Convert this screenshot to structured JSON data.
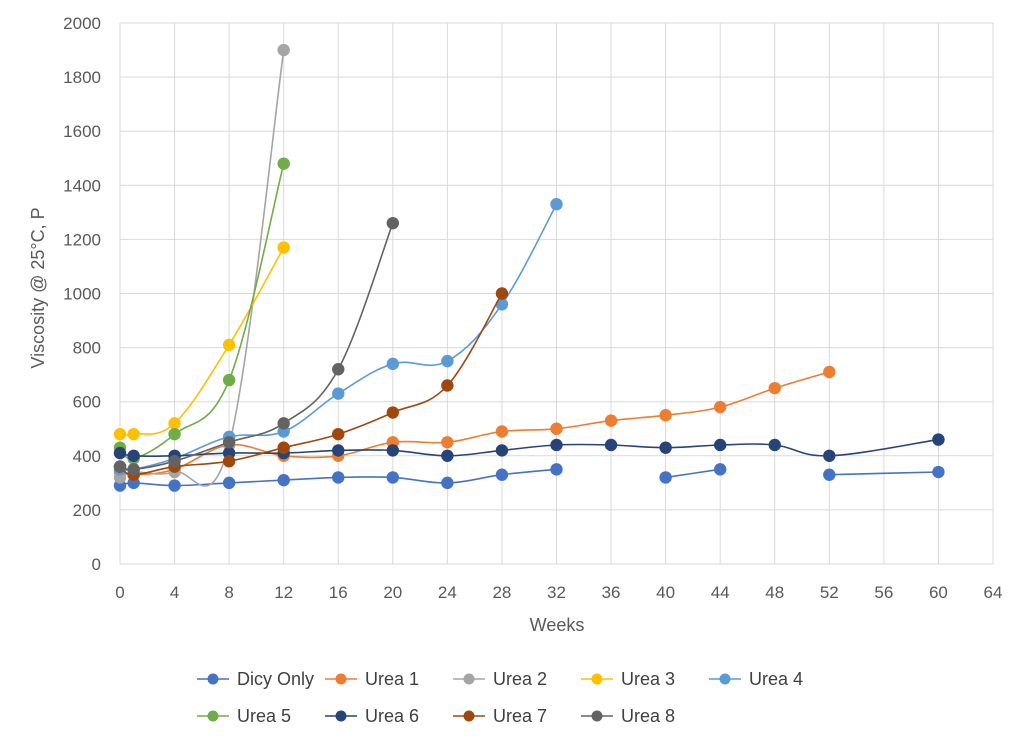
{
  "chart_data": {
    "type": "line",
    "title": "",
    "xlabel": "Weeks",
    "ylabel": "Viscosity @ 25°C,  P",
    "xlim": [
      0,
      64
    ],
    "ylim": [
      0,
      2000
    ],
    "xticks": [
      "0",
      "4",
      "8",
      "12",
      "16",
      "20",
      "24",
      "28",
      "32",
      "36",
      "40",
      "44",
      "48",
      "52",
      "56",
      "60",
      "64"
    ],
    "yticks": [
      "0",
      "200",
      "400",
      "600",
      "800",
      "1000",
      "1200",
      "1400",
      "1600",
      "1800",
      "2000"
    ],
    "grid": true,
    "legend_position": "bottom",
    "series": [
      {
        "name": "Dicy Only",
        "color": "#4472C4",
        "points": [
          [
            0,
            290
          ],
          [
            1,
            300
          ],
          [
            4,
            290
          ],
          [
            8,
            300
          ],
          [
            12,
            310
          ],
          [
            16,
            320
          ],
          [
            20,
            320
          ],
          [
            24,
            300
          ],
          [
            28,
            330
          ],
          [
            32,
            350
          ],
          null,
          [
            40,
            320
          ],
          [
            44,
            350
          ],
          null,
          [
            52,
            330
          ],
          [
            60,
            340
          ]
        ]
      },
      {
        "name": "Urea 1",
        "color": "#ED7D31",
        "points": [
          [
            0,
            340
          ],
          [
            1,
            330
          ],
          [
            4,
            350
          ],
          [
            8,
            440
          ],
          [
            12,
            400
          ],
          [
            16,
            400
          ],
          [
            20,
            450
          ],
          [
            24,
            450
          ],
          [
            28,
            490
          ],
          [
            32,
            500
          ],
          [
            36,
            530
          ],
          [
            40,
            550
          ],
          [
            44,
            580
          ],
          [
            48,
            650
          ],
          [
            52,
            710
          ]
        ]
      },
      {
        "name": "Urea 2",
        "color": "#A5A5A5",
        "points": [
          [
            0,
            320
          ],
          [
            1,
            340
          ],
          [
            4,
            340
          ],
          [
            8,
            440
          ],
          [
            12,
            1900
          ]
        ]
      },
      {
        "name": "Urea 3",
        "color": "#FFC000",
        "points": [
          [
            0,
            480
          ],
          [
            1,
            480
          ],
          [
            4,
            520
          ],
          [
            8,
            810
          ],
          [
            12,
            1170
          ]
        ]
      },
      {
        "name": "Urea 4",
        "color": "#5B9BD5",
        "points": [
          [
            0,
            350
          ],
          [
            1,
            350
          ],
          [
            4,
            390
          ],
          [
            8,
            470
          ],
          [
            12,
            490
          ],
          [
            16,
            630
          ],
          [
            20,
            740
          ],
          [
            24,
            750
          ],
          [
            28,
            960
          ],
          [
            32,
            1330
          ]
        ]
      },
      {
        "name": "Urea 5",
        "color": "#70AD47",
        "points": [
          [
            0,
            430
          ],
          [
            1,
            390
          ],
          [
            4,
            480
          ],
          [
            8,
            680
          ],
          [
            12,
            1480
          ]
        ]
      },
      {
        "name": "Urea 6",
        "color": "#264478",
        "points": [
          [
            0,
            410
          ],
          [
            1,
            400
          ],
          [
            4,
            400
          ],
          [
            8,
            410
          ],
          [
            12,
            410
          ],
          [
            16,
            420
          ],
          [
            20,
            420
          ],
          [
            24,
            400
          ],
          [
            28,
            420
          ],
          [
            32,
            440
          ],
          [
            36,
            440
          ],
          [
            40,
            430
          ],
          [
            44,
            440
          ],
          [
            48,
            440
          ],
          [
            52,
            400
          ],
          [
            60,
            460
          ]
        ]
      },
      {
        "name": "Urea 7",
        "color": "#9E480E",
        "points": [
          [
            0,
            360
          ],
          [
            1,
            330
          ],
          [
            4,
            360
          ],
          [
            8,
            380
          ],
          [
            12,
            430
          ],
          [
            16,
            480
          ],
          [
            20,
            560
          ],
          [
            24,
            660
          ],
          [
            28,
            1000
          ]
        ]
      },
      {
        "name": "Urea 8",
        "color": "#636363",
        "points": [
          [
            0,
            360
          ],
          [
            1,
            350
          ],
          [
            4,
            380
          ],
          [
            8,
            450
          ],
          [
            12,
            520
          ],
          [
            16,
            720
          ],
          [
            20,
            1260
          ]
        ]
      }
    ]
  }
}
